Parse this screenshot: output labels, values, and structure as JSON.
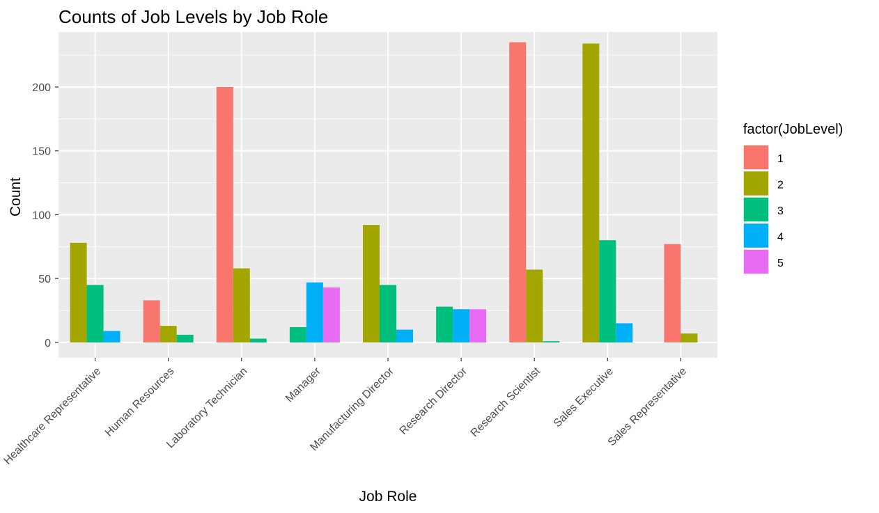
{
  "chart_data": {
    "type": "bar",
    "title": "Counts of Job Levels by Job Role",
    "xlabel": "Job Role",
    "ylabel": "Count",
    "ylim": [
      -12,
      243
    ],
    "yticks": [
      0,
      50,
      100,
      150,
      200
    ],
    "grid": true,
    "legend_position": "right",
    "legend_title": "factor(JobLevel)",
    "categories": [
      "Healthcare Representative",
      "Human Resources",
      "Laboratory Technician",
      "Manager",
      "Manufacturing Director",
      "Research Director",
      "Research Scientist",
      "Sales Executive",
      "Sales Representative"
    ],
    "series": [
      {
        "name": "1",
        "color": "#F8766D",
        "values": [
          null,
          33,
          200,
          null,
          null,
          null,
          235,
          null,
          77
        ]
      },
      {
        "name": "2",
        "color": "#A3A500",
        "values": [
          78,
          13,
          58,
          null,
          92,
          null,
          57,
          234,
          7
        ]
      },
      {
        "name": "3",
        "color": "#00BF7D",
        "values": [
          45,
          6,
          3,
          12,
          45,
          28,
          1,
          80,
          null
        ]
      },
      {
        "name": "4",
        "color": "#00B0F6",
        "values": [
          9,
          null,
          null,
          47,
          10,
          26,
          null,
          15,
          null
        ]
      },
      {
        "name": "5",
        "color": "#E76BF3",
        "values": [
          null,
          null,
          null,
          43,
          null,
          26,
          null,
          null,
          null
        ]
      }
    ]
  }
}
